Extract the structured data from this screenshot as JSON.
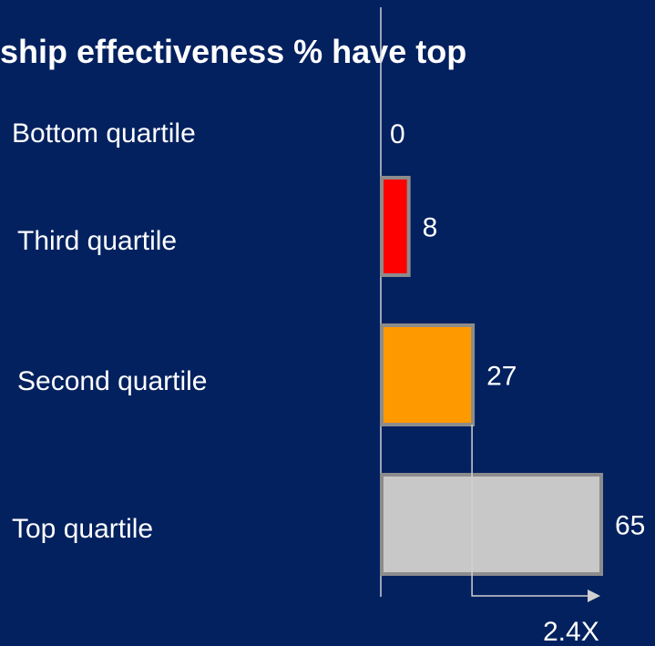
{
  "chart_data": {
    "type": "bar",
    "orientation": "horizontal",
    "title": "rship effectiveness % have top",
    "categories": [
      "Bottom quartile",
      "Third quartile",
      "Second quartile",
      "Top quartile"
    ],
    "values": [
      0,
      8,
      27,
      65
    ],
    "data_labels": [
      "0",
      "8",
      "27",
      "65"
    ],
    "colors": [
      "#ff0000",
      "#ff0000",
      "#ff9900",
      "#c8c8c8"
    ],
    "bar_border_color": "#8c8c8c",
    "annotation": "2.4X",
    "grid": false,
    "legend": "none"
  },
  "colors": {
    "background": "#03215f",
    "text": "#ffffff",
    "axis": "#c8c8c8"
  }
}
